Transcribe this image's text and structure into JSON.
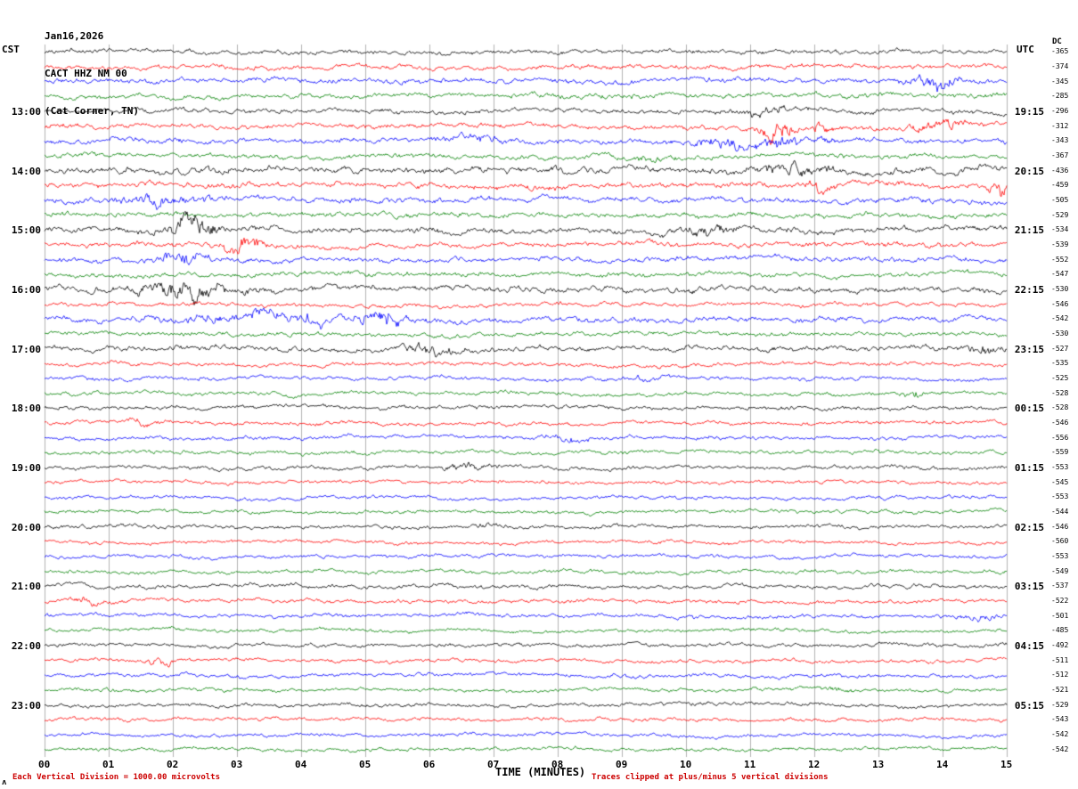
{
  "header": {
    "date": "Jan16,2026",
    "station": "CACT HHZ NM 00",
    "location": "(Cat Corner, TN)",
    "left_tz": "CST",
    "right_tz": "UTC",
    "dc_label": "DC"
  },
  "footer": {
    "xlabel": "TIME (MINUTES)",
    "scale_note": "Each Vertical Division = 1000.00 microvolts",
    "clip_note": "Traces clipped at plus/minus 5 vertical divisions",
    "corner_mark": "ʌ"
  },
  "x_axis": {
    "tick_labels": [
      "00",
      "01",
      "02",
      "03",
      "04",
      "05",
      "06",
      "07",
      "08",
      "09",
      "10",
      "11",
      "12",
      "13",
      "14",
      "15"
    ]
  },
  "chart_data": {
    "type": "line",
    "subtype": "helicorder-seismogram",
    "title": "CACT HHZ NM 00 (Cat Corner, TN) Jan16,2026",
    "xlabel": "TIME (MINUTES)",
    "x_range": [
      0,
      15
    ],
    "minutes_per_line": 15,
    "rows": 48,
    "vertical_division_microvolts": 1000.0,
    "clip_divisions": 5,
    "trace_colors": [
      "#000000",
      "#ff0000",
      "#0000ff",
      "#008000"
    ],
    "grid_color": "#b4b4b4",
    "left_hour_labels": [
      "13:00",
      "14:00",
      "15:00",
      "16:00",
      "17:00",
      "18:00",
      "19:00",
      "20:00",
      "21:00",
      "22:00",
      "23:00"
    ],
    "right_hour_labels": [
      "19:15",
      "20:15",
      "21:15",
      "22:15",
      "23:15",
      "00:15",
      "01:15",
      "02:15",
      "03:15",
      "04:15",
      "05:15"
    ],
    "dc_offsets": [
      -365,
      -374,
      -345,
      -285,
      -296,
      -312,
      -343,
      -367,
      -436,
      -459,
      -505,
      -529,
      -534,
      -539,
      -552,
      -547,
      -530,
      -546,
      -542,
      -530,
      -527,
      -535,
      -525,
      -528,
      -528,
      -546,
      -556,
      -559,
      -553,
      -545,
      -553,
      -544,
      -546,
      -560,
      -553,
      -549,
      -537,
      -522,
      -501,
      -485,
      -492,
      -511,
      -512,
      -521,
      -529,
      -543,
      -542,
      -542
    ],
    "row_amplitudes": [
      1.1,
      1.2,
      1.3,
      1.25,
      1.2,
      1.25,
      1.25,
      1.2,
      1.6,
      1.4,
      1.45,
      1.3,
      1.45,
      1.3,
      1.3,
      1.2,
      1.5,
      1.05,
      1.35,
      1.1,
      1.3,
      1.0,
      1.0,
      1.0,
      1.0,
      1.0,
      1.0,
      0.95,
      1.0,
      0.9,
      0.9,
      0.9,
      0.95,
      0.9,
      0.95,
      0.95,
      1.0,
      1.0,
      1.0,
      0.9,
      1.0,
      0.95,
      0.95,
      0.9,
      0.95,
      0.95,
      0.9,
      0.9
    ],
    "events": [
      {
        "row": 2,
        "minute": 13.9,
        "amp": 2.2,
        "width": 0.25
      },
      {
        "row": 4,
        "minute": 11.3,
        "amp": 1.2,
        "width": 0.4
      },
      {
        "row": 5,
        "minute": 11.4,
        "amp": 4.5,
        "width": 0.18
      },
      {
        "row": 5,
        "minute": 12.1,
        "amp": 2.5,
        "width": 0.1
      },
      {
        "row": 5,
        "minute": 14.0,
        "amp": 1.2,
        "width": 0.3
      },
      {
        "row": 6,
        "minute": 6.6,
        "amp": 1.0,
        "width": 0.4
      },
      {
        "row": 6,
        "minute": 11.0,
        "amp": 1.6,
        "width": 0.8
      },
      {
        "row": 7,
        "minute": 9.3,
        "amp": 0.8,
        "width": 0.3
      },
      {
        "row": 8,
        "minute": 11.6,
        "amp": 1.2,
        "width": 0.5
      },
      {
        "row": 9,
        "minute": 12.1,
        "amp": 1.5,
        "width": 0.15
      },
      {
        "row": 9,
        "minute": 14.9,
        "amp": 2.5,
        "width": 0.12
      },
      {
        "row": 10,
        "minute": 1.8,
        "amp": 1.5,
        "width": 0.5
      },
      {
        "row": 12,
        "minute": 2.3,
        "amp": 3.5,
        "width": 0.25
      },
      {
        "row": 12,
        "minute": 10.4,
        "amp": 1.0,
        "width": 0.4
      },
      {
        "row": 13,
        "minute": 3.1,
        "amp": 2.2,
        "width": 0.2
      },
      {
        "row": 14,
        "minute": 2.1,
        "amp": 2.0,
        "width": 0.25
      },
      {
        "row": 16,
        "minute": 2.2,
        "amp": 2.2,
        "width": 0.5
      },
      {
        "row": 18,
        "minute": 3.8,
        "amp": 1.3,
        "width": 1.2
      },
      {
        "row": 18,
        "minute": 5.3,
        "amp": 1.8,
        "width": 0.2
      },
      {
        "row": 20,
        "minute": 6.0,
        "amp": 1.6,
        "width": 0.3
      },
      {
        "row": 20,
        "minute": 14.6,
        "amp": 1.5,
        "width": 0.2
      },
      {
        "row": 22,
        "minute": 9.4,
        "amp": 1.2,
        "width": 0.2
      },
      {
        "row": 23,
        "minute": 13.6,
        "amp": 1.8,
        "width": 0.12
      },
      {
        "row": 25,
        "minute": 1.5,
        "amp": 1.5,
        "width": 0.12
      },
      {
        "row": 26,
        "minute": 8.2,
        "amp": 1.3,
        "width": 0.2
      },
      {
        "row": 28,
        "minute": 6.6,
        "amp": 1.4,
        "width": 0.25
      },
      {
        "row": 32,
        "minute": 6.9,
        "amp": 1.6,
        "width": 0.12
      },
      {
        "row": 37,
        "minute": 0.7,
        "amp": 1.3,
        "width": 0.2
      },
      {
        "row": 38,
        "minute": 14.6,
        "amp": 1.6,
        "width": 0.2
      },
      {
        "row": 41,
        "minute": 1.8,
        "amp": 1.4,
        "width": 0.15
      },
      {
        "row": 43,
        "minute": 12.2,
        "amp": 1.0,
        "width": 0.3
      }
    ]
  }
}
